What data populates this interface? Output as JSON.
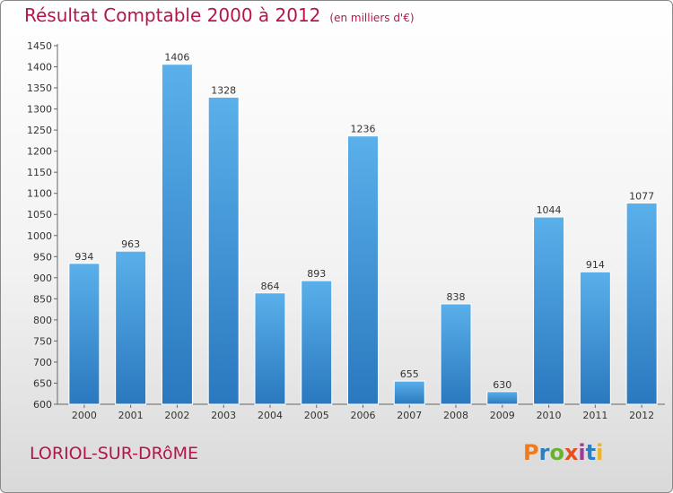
{
  "colors": {
    "title": "#b5164a",
    "bar_light": "#5ab0ea",
    "bar_dark": "#2a78bf",
    "logo": [
      "#f07b1c",
      "#2d7fc1",
      "#6ab42d",
      "#e94e1b",
      "#9b3d96",
      "#2d7fc1",
      "#f0b41c"
    ]
  },
  "header": {
    "title": "Résultat Comptable 2000 à 2012",
    "subtitle": "(en milliers d'€)"
  },
  "footer": {
    "town": "LORIOL-SUR-DRôME",
    "logo_letters": [
      "P",
      "r",
      "o",
      "x",
      "i",
      "t",
      "i"
    ]
  },
  "chart_data": {
    "type": "bar",
    "title": "Résultat Comptable 2000 à 2012",
    "subtitle": "(en milliers d'€)",
    "xlabel": "",
    "ylabel": "",
    "categories": [
      "2000",
      "2001",
      "2002",
      "2003",
      "2004",
      "2005",
      "2006",
      "2007",
      "2008",
      "2009",
      "2010",
      "2011",
      "2012"
    ],
    "values": [
      934,
      963,
      1406,
      1328,
      864,
      893,
      1236,
      655,
      838,
      630,
      1044,
      914,
      1077
    ],
    "ylim": [
      600,
      1450
    ],
    "ytick_step": 50,
    "grid": false,
    "legend": "none"
  }
}
